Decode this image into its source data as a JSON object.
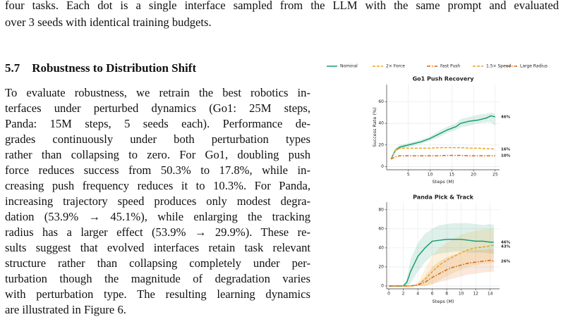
{
  "paper": {
    "intro_lines": [
      "four tasks. Each dot is a single interface sampled from the LLM with the same prompt and evaluated",
      "over 3 seeds with identical training budgets."
    ],
    "section_number": "5.7",
    "section_title": "Robustness to Distribution Shift",
    "body_lines": [
      "To evaluate robustness, we retrain the best robotics in-",
      "terfaces under perturbed dynamics (Go1: 25M steps,",
      "Panda: 15M steps, 5 seeds each). Performance de-",
      "grades continuously under both perturbation types",
      "rather than collapsing to zero. For Go1, doubling push",
      "force reduces success from 50.3% to 17.8%, while in-",
      "creasing push frequency reduces it to 10.3%. For Panda,",
      "increasing trajectory speed produces only modest degra-",
      "dation (53.9% → 45.1%), while enlarging the tracking",
      "radius has a larger effect (53.9% → 29.9%). These re-",
      "sults suggest that evolved interfaces retain task relevant",
      "structure rather than collapsing completely under per-",
      "turbation though the magnitude of degradation varies",
      "with perturbation type. The resulting learning dynamics",
      "are illustrated in Figure 6."
    ]
  },
  "chart_data": [
    {
      "type": "line",
      "title": "Go1 Push Recovery",
      "x_label": "Steps (M)",
      "y_label": "Success Rate (%)",
      "x": [
        1,
        2,
        3,
        5,
        8,
        10,
        12,
        14,
        16,
        17,
        19,
        21,
        23,
        24,
        25
      ],
      "xlim": [
        0,
        26
      ],
      "xticks": [
        5,
        10,
        15,
        20,
        25
      ],
      "ylim": [
        -3,
        76
      ],
      "yticks": [
        0,
        20,
        40,
        60
      ],
      "grid": true,
      "series": [
        {
          "name": "Nominal",
          "color": "#1a9c6e",
          "linestyle": "solid",
          "values": [
            7,
            15,
            18,
            20,
            23,
            26,
            30,
            34,
            37,
            40,
            42,
            43,
            45,
            47,
            46
          ],
          "lower": [
            6,
            13,
            16,
            18,
            21,
            24,
            27,
            31,
            34,
            36,
            38,
            40,
            41,
            41,
            38
          ],
          "upper": [
            8,
            17,
            20,
            22,
            25,
            28,
            33,
            37,
            40,
            44,
            46,
            48,
            49,
            50,
            49
          ],
          "value_labels": [
            null,
            null,
            null,
            null,
            null,
            null,
            null,
            null,
            null,
            null,
            null,
            null,
            null,
            null,
            "46%"
          ]
        },
        {
          "name": "2× Force",
          "color": "#eba31a",
          "linestyle": "dashed",
          "values": [
            7,
            15,
            17,
            17,
            17,
            17,
            17.5,
            17.5,
            17.5,
            17.5,
            17,
            17,
            16.5,
            16.5,
            16
          ],
          "value_labels": [
            null,
            null,
            null,
            null,
            null,
            null,
            null,
            null,
            null,
            null,
            null,
            null,
            null,
            null,
            "16%"
          ]
        },
        {
          "name": "Fast Push",
          "color": "#d9650f",
          "linestyle": "dashdot",
          "values": [
            7,
            9,
            10,
            10,
            10,
            10,
            10,
            10.3,
            10.3,
            10.3,
            10,
            10,
            10,
            10,
            10
          ],
          "value_labels": [
            null,
            null,
            null,
            null,
            null,
            null,
            null,
            null,
            null,
            null,
            null,
            null,
            null,
            null,
            "10%"
          ]
        }
      ]
    },
    {
      "type": "line",
      "title": "Panda Pick & Track",
      "x_label": "Steps (M)",
      "x": [
        0,
        1,
        2,
        2.5,
        3,
        4,
        5,
        6,
        7,
        8,
        9,
        10,
        11,
        12,
        13,
        14,
        14.5
      ],
      "xlim": [
        -0.3,
        15.3
      ],
      "xticks": [
        0,
        2,
        4,
        6,
        8,
        10,
        12,
        14
      ],
      "ylim": [
        -3,
        88
      ],
      "yticks": [
        0,
        20,
        40,
        60,
        80
      ],
      "grid": true,
      "series": [
        {
          "name": "Nominal",
          "color": "#1a9c6e",
          "linestyle": "solid",
          "values": [
            0,
            0,
            0,
            4,
            15,
            31,
            40,
            47,
            48,
            49,
            49,
            49,
            48,
            47,
            47,
            46,
            46
          ],
          "lower": [
            0,
            0,
            0,
            0,
            3,
            15,
            25,
            32,
            34,
            35,
            36,
            36,
            35,
            35,
            35,
            34,
            34
          ],
          "upper": [
            0,
            0,
            0,
            8,
            28,
            45,
            55,
            60,
            64,
            65,
            66,
            66,
            66,
            65,
            64,
            65,
            64
          ],
          "value_labels": [
            null,
            null,
            null,
            null,
            null,
            null,
            null,
            null,
            null,
            null,
            null,
            null,
            null,
            null,
            null,
            null,
            "46%"
          ]
        },
        {
          "name": "1.5× Speed",
          "color": "#eba31a",
          "linestyle": "dashed",
          "values": [
            0,
            0,
            0,
            0,
            0,
            1,
            7,
            15,
            22,
            27,
            31,
            35,
            38,
            40,
            41,
            42,
            43
          ],
          "lower": [
            0,
            0,
            0,
            0,
            0,
            0,
            0,
            2,
            6,
            10,
            14,
            17,
            20,
            22,
            23,
            24,
            25
          ],
          "upper": [
            0,
            0,
            0,
            0,
            0,
            3,
            18,
            32,
            40,
            45,
            50,
            54,
            56,
            58,
            59,
            60,
            60
          ],
          "value_labels": [
            null,
            null,
            null,
            null,
            null,
            null,
            null,
            null,
            null,
            null,
            null,
            null,
            null,
            null,
            null,
            null,
            "43%"
          ]
        },
        {
          "name": "Large Radius",
          "color": "#d9650f",
          "linestyle": "dashdot",
          "values": [
            0,
            0,
            0,
            0,
            0,
            1,
            4,
            9,
            13,
            17,
            20,
            22,
            24,
            25,
            26,
            27,
            26
          ],
          "lower": [
            0,
            0,
            0,
            0,
            0,
            0,
            0,
            2,
            4,
            6,
            8,
            10,
            12,
            13,
            14,
            15,
            15
          ],
          "upper": [
            0,
            0,
            0,
            0,
            0,
            2,
            10,
            20,
            26,
            30,
            33,
            35,
            37,
            38,
            38,
            39,
            39
          ],
          "value_labels": [
            null,
            null,
            null,
            null,
            null,
            null,
            null,
            null,
            null,
            null,
            null,
            null,
            null,
            null,
            null,
            null,
            "26%"
          ]
        }
      ]
    }
  ]
}
